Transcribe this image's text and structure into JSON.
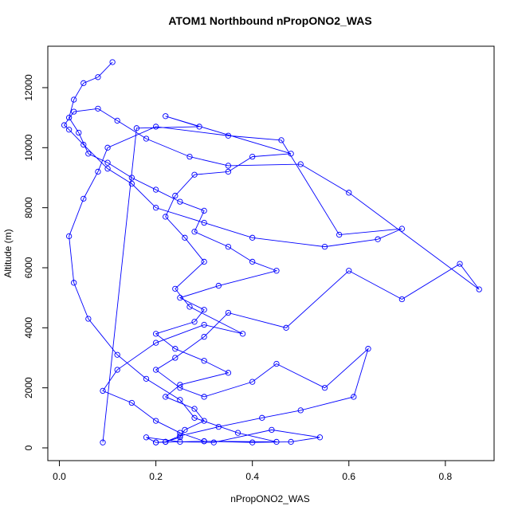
{
  "chart_data": {
    "type": "line",
    "title": "ATOM1 Northbound nPropONO2_WAS",
    "x_label": "nPropONO2_WAS",
    "y_label": "Altitude (m)",
    "x": [
      0.11,
      0.08,
      0.05,
      0.03,
      0.02,
      0.04,
      0.06,
      0.1,
      0.15,
      0.2,
      0.25,
      0.3,
      0.28,
      0.35,
      0.4,
      0.45,
      0.33,
      0.25,
      0.3,
      0.28,
      0.2,
      0.24,
      0.3,
      0.35,
      0.25,
      0.22,
      0.28,
      0.3,
      0.26,
      0.25,
      0.22,
      0.2,
      0.3,
      0.45,
      0.37,
      0.28,
      0.25,
      0.18,
      0.12,
      0.06,
      0.03,
      0.02,
      0.05,
      0.08,
      0.1,
      0.2,
      0.35,
      0.46,
      0.58,
      0.71,
      0.66,
      0.55,
      0.4,
      0.3,
      0.2,
      0.15,
      0.1,
      0.05,
      0.02,
      0.01,
      0.03,
      0.08,
      0.12,
      0.18,
      0.27,
      0.35,
      0.5,
      0.6,
      0.87,
      0.83,
      0.71,
      0.6,
      0.47,
      0.35,
      0.3,
      0.24,
      0.2,
      0.25,
      0.3,
      0.4,
      0.45,
      0.55,
      0.64,
      0.61,
      0.5,
      0.42,
      0.33,
      0.25,
      0.22,
      0.2,
      0.18,
      0.25,
      0.32,
      0.44,
      0.54,
      0.48,
      0.4,
      0.3,
      0.25,
      0.2,
      0.15,
      0.09,
      0.12,
      0.2,
      0.3,
      0.38,
      0.27,
      0.24,
      0.3,
      0.26,
      0.22,
      0.24,
      0.28,
      0.35,
      0.4,
      0.48,
      0.22,
      0.29,
      0.16,
      0.09
    ],
    "series": [
      {
        "color": "#0000ff",
        "values": [
          12850,
          12350,
          12150,
          11600,
          11000,
          10500,
          9800,
          9500,
          9000,
          8600,
          8200,
          7900,
          7200,
          6700,
          6200,
          5900,
          5400,
          5000,
          4600,
          4200,
          3800,
          3300,
          2900,
          2500,
          2100,
          1700,
          1300,
          900,
          600,
          350,
          200,
          180,
          220,
          200,
          500,
          1000,
          1600,
          2300,
          3100,
          4300,
          5500,
          7050,
          8300,
          9200,
          10000,
          10700,
          10400,
          10250,
          7100,
          7300,
          6950,
          6700,
          7000,
          7500,
          8000,
          8800,
          9300,
          10100,
          10600,
          10750,
          11200,
          11300,
          10900,
          10300,
          9700,
          9400,
          9450,
          8500,
          5280,
          6130,
          4950,
          5900,
          4000,
          4500,
          3700,
          3000,
          2600,
          2000,
          1700,
          2200,
          2800,
          2000,
          3300,
          1700,
          1250,
          1000,
          700,
          400,
          200,
          180,
          350,
          200,
          180,
          600,
          350,
          200,
          180,
          220,
          500,
          900,
          1500,
          1900,
          2600,
          3500,
          4100,
          3800,
          4700,
          5300,
          6200,
          7000,
          7700,
          8400,
          9100,
          9200,
          9700,
          9800,
          11050,
          10700,
          10650,
          180
        ]
      }
    ],
    "xlim": [
      -0.024,
      0.901
    ],
    "ylim": [
      -425,
      13380
    ],
    "xticks": [
      {
        "value": 0,
        "label": "0.0"
      },
      0.2,
      0.4,
      0.6,
      0.8
    ],
    "yticks": [
      0,
      2000,
      4000,
      6000,
      8000,
      10000,
      12000
    ]
  }
}
